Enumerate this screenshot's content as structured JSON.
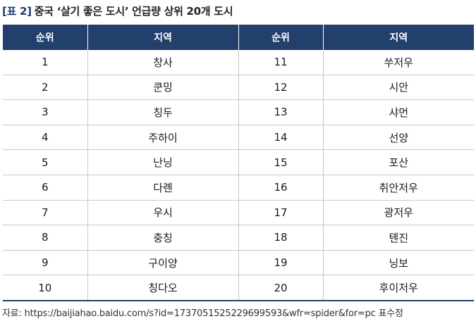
{
  "title": {
    "tag": "[표 2]",
    "text": "중국 ‘살기 좋은 도시’ 언급량 상위 20개 도시"
  },
  "table": {
    "headers": [
      "순위",
      "지역",
      "순위",
      "지역"
    ],
    "rows": [
      {
        "left_rank": "1",
        "left_city": "창사",
        "right_rank": "11",
        "right_city": "쑤저우"
      },
      {
        "left_rank": "2",
        "left_city": "쿤밍",
        "right_rank": "12",
        "right_city": "시안"
      },
      {
        "left_rank": "3",
        "left_city": "칭두",
        "right_rank": "13",
        "right_city": "샤먼"
      },
      {
        "left_rank": "4",
        "left_city": "주하이",
        "right_rank": "14",
        "right_city": "선양"
      },
      {
        "left_rank": "5",
        "left_city": "난닝",
        "right_rank": "15",
        "right_city": "포산"
      },
      {
        "left_rank": "6",
        "left_city": "다롄",
        "right_rank": "16",
        "right_city": "취안저우"
      },
      {
        "left_rank": "7",
        "left_city": "우시",
        "right_rank": "17",
        "right_city": "광저우"
      },
      {
        "left_rank": "8",
        "left_city": "충칭",
        "right_rank": "18",
        "right_city": "톈진"
      },
      {
        "left_rank": "9",
        "left_city": "구이양",
        "right_rank": "19",
        "right_city": "닝보"
      },
      {
        "left_rank": "10",
        "left_city": "칭다오",
        "right_rank": "20",
        "right_city": "후이저우"
      }
    ]
  },
  "source": "자료: https://baijiahao.baidu.com/s?id=1737051525229699593&wfr=spider&for=pc 표수정",
  "colors": {
    "header_bg": "#233f6c",
    "header_text": "#ffffff",
    "grid_line": "#c9c9c9"
  }
}
